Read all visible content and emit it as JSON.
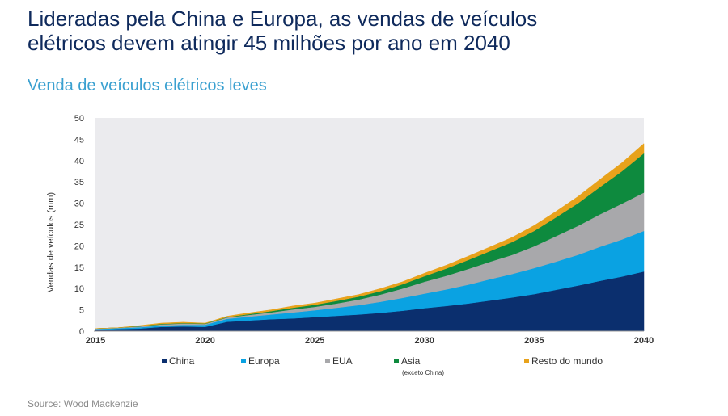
{
  "header": {
    "title_line1": "Lideradas pela China e Europa, as vendas de veículos",
    "title_line2": "elétricos devem atingir 45 milhões por ano em 2040"
  },
  "footer": {
    "source": "Source: Wood Mackenzie"
  },
  "chart_data": {
    "type": "area",
    "stacked": true,
    "title": "Venda de veículos elétricos leves",
    "ylabel": "Vendas de veículos (mm)",
    "xlabel": "",
    "xlim": [
      2015,
      2040
    ],
    "ylim": [
      0,
      50
    ],
    "xticks": [
      2015,
      2020,
      2025,
      2030,
      2035,
      2040
    ],
    "yticks": [
      0,
      5,
      10,
      15,
      20,
      25,
      30,
      35,
      40,
      45,
      50
    ],
    "grid": false,
    "legend_position": "bottom",
    "x": [
      2015,
      2016,
      2017,
      2018,
      2019,
      2020,
      2021,
      2022,
      2023,
      2024,
      2025,
      2026,
      2027,
      2028,
      2029,
      2030,
      2031,
      2032,
      2033,
      2034,
      2035,
      2036,
      2037,
      2038,
      2039,
      2040
    ],
    "series": [
      {
        "name": "China",
        "color": "#0b2f6e",
        "values": [
          0.3,
          0.5,
          0.6,
          1.0,
          1.1,
          1.0,
          2.2,
          2.5,
          2.8,
          3.0,
          3.3,
          3.6,
          3.9,
          4.3,
          4.8,
          5.4,
          5.9,
          6.5,
          7.2,
          7.9,
          8.7,
          9.7,
          10.7,
          11.8,
          12.8,
          14.0
        ]
      },
      {
        "name": "Europa",
        "color": "#0aa2e2",
        "values": [
          0.2,
          0.2,
          0.3,
          0.3,
          0.4,
          0.5,
          0.7,
          0.9,
          1.1,
          1.4,
          1.6,
          1.9,
          2.2,
          2.6,
          3.0,
          3.4,
          3.9,
          4.4,
          5.0,
          5.5,
          6.1,
          6.6,
          7.2,
          8.0,
          8.7,
          9.5
        ]
      },
      {
        "name": "EUA",
        "color": "#a8a8ab",
        "values": [
          0.1,
          0.1,
          0.2,
          0.3,
          0.3,
          0.2,
          0.3,
          0.4,
          0.5,
          0.7,
          0.8,
          1.0,
          1.3,
          1.7,
          2.2,
          2.8,
          3.2,
          3.7,
          4.1,
          4.5,
          5.1,
          6.0,
          6.8,
          7.6,
          8.4,
          9.0
        ]
      },
      {
        "name": "Asia",
        "note": "(exceto China)",
        "color": "#0e8a3e",
        "values": [
          0.0,
          0.0,
          0.1,
          0.1,
          0.1,
          0.1,
          0.1,
          0.2,
          0.3,
          0.4,
          0.5,
          0.6,
          0.7,
          0.8,
          1.0,
          1.3,
          1.7,
          2.1,
          2.5,
          3.0,
          3.6,
          4.4,
          5.3,
          6.4,
          7.6,
          9.2
        ]
      },
      {
        "name": "Resto do mundo",
        "color": "#e8a21b",
        "values": [
          0.0,
          0.0,
          0.1,
          0.2,
          0.2,
          0.1,
          0.2,
          0.3,
          0.3,
          0.4,
          0.4,
          0.5,
          0.5,
          0.6,
          0.6,
          0.7,
          0.8,
          0.9,
          1.0,
          1.1,
          1.3,
          1.4,
          1.6,
          1.8,
          2.0,
          2.3
        ]
      }
    ]
  }
}
